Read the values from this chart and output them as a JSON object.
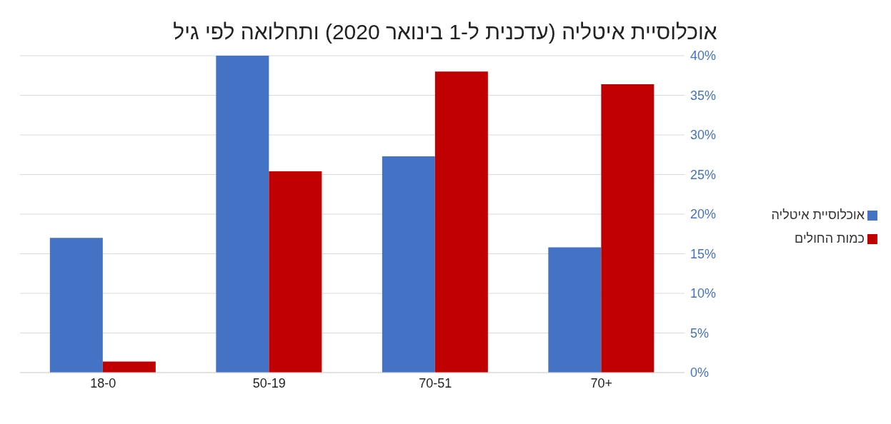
{
  "chart_data": {
    "type": "bar",
    "title": "אוכלוסיית איטליה (עדכנית ל-1 בינואר 2020) ותחלואה לפי גיל",
    "categories": [
      "18-0",
      "50-19",
      "70-51",
      "70+"
    ],
    "series": [
      {
        "name": "אוכלוסיית איטליה",
        "color": "#4472c4",
        "values": [
          17.0,
          40.0,
          27.3,
          15.8
        ]
      },
      {
        "name": "כמות החולים",
        "color": "#c00000",
        "values": [
          1.4,
          25.4,
          38.0,
          36.4
        ]
      }
    ],
    "ylim": [
      0,
      40
    ],
    "yticks": [
      {
        "value": 0,
        "label": "0%"
      },
      {
        "value": 5,
        "label": "5%"
      },
      {
        "value": 10,
        "label": "10%"
      },
      {
        "value": 15,
        "label": "15%"
      },
      {
        "value": 20,
        "label": "20%"
      },
      {
        "value": 25,
        "label": "25%"
      },
      {
        "value": 30,
        "label": "30%"
      },
      {
        "value": 35,
        "label": "35%"
      },
      {
        "value": 40,
        "label": "40%"
      }
    ],
    "grid": "y",
    "legend": "right"
  }
}
